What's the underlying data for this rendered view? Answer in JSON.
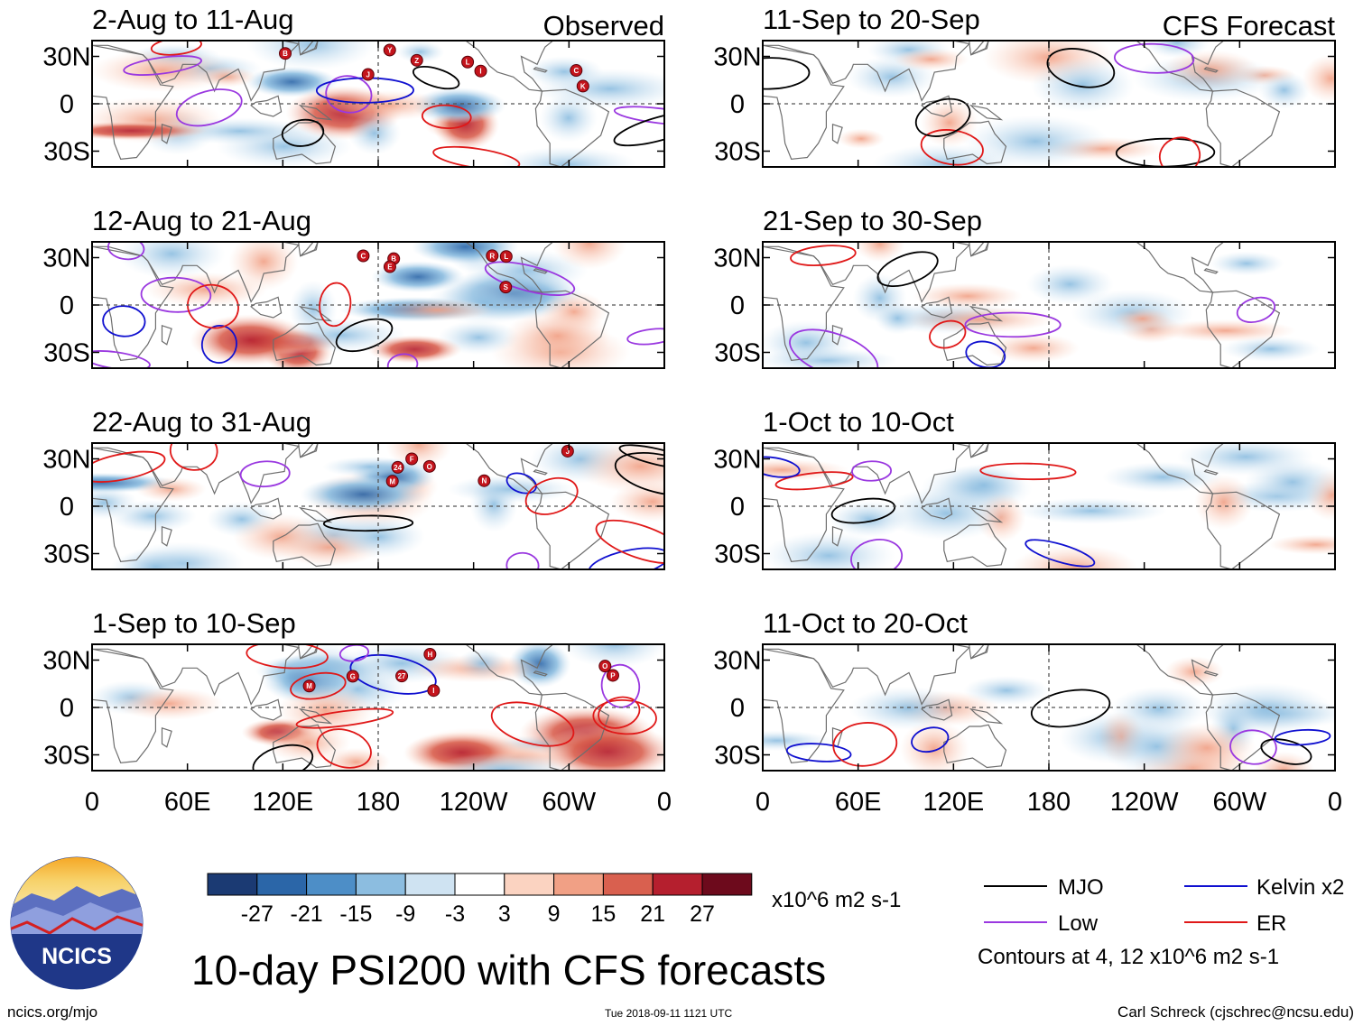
{
  "chart_data": {
    "type": "heatmap",
    "title": "10-day PSI200 with CFS forecasts",
    "variable": "PSI200 anomaly",
    "units": "x10^6 m2 s-1",
    "column_labels": [
      "Observed",
      "CFS Forecast"
    ],
    "panels": [
      {
        "label": "2-Aug to 11-Aug",
        "source": "Observed",
        "storms": [
          "Y",
          "Z",
          "B",
          "C",
          "K",
          "J",
          "I",
          "L"
        ]
      },
      {
        "label": "12-Aug to 21-Aug",
        "source": "Observed",
        "storms": [
          "B",
          "R",
          "S",
          "C",
          "L",
          "E"
        ]
      },
      {
        "label": "22-Aug to 31-Aug",
        "source": "Observed",
        "storms": [
          "24",
          "J",
          "M",
          "N",
          "O",
          "F"
        ]
      },
      {
        "label": "1-Sep to 10-Sep",
        "source": "Observed",
        "storms": [
          "27",
          "M",
          "P",
          "O",
          "G",
          "I",
          "H"
        ]
      },
      {
        "label": "11-Sep to 20-Sep",
        "source": "CFS Forecast",
        "storms": []
      },
      {
        "label": "21-Sep to 30-Sep",
        "source": "CFS Forecast",
        "storms": []
      },
      {
        "label": "1-Oct to 10-Oct",
        "source": "CFS Forecast",
        "storms": []
      },
      {
        "label": "11-Oct to 20-Oct",
        "source": "CFS Forecast",
        "storms": []
      }
    ],
    "x_ticks": [
      "0",
      "60E",
      "120E",
      "180",
      "120W",
      "60W",
      "0"
    ],
    "y_ticks": [
      "30N",
      "0",
      "30S"
    ],
    "lat_range": [
      -40,
      40
    ],
    "lon_range": [
      0,
      360
    ],
    "colorbar": {
      "ticks": [
        "-27",
        "-21",
        "-15",
        "-9",
        "-3",
        "3",
        "9",
        "15",
        "21",
        "27"
      ],
      "levels": [
        -27,
        -21,
        -15,
        -9,
        -3,
        3,
        9,
        15,
        21,
        27
      ],
      "colors": [
        "#1b3a73",
        "#2b66a8",
        "#4d8ec7",
        "#8cbde0",
        "#cfe3f2",
        "#ffffff",
        "#fbd3c1",
        "#f1a085",
        "#d9604f",
        "#b51f2e",
        "#6d0a1c"
      ]
    },
    "contour_legend": [
      {
        "label": "MJO",
        "color": "#000000"
      },
      {
        "label": "Kelvin x2",
        "color": "#1010d0"
      },
      {
        "label": "Low",
        "color": "#9a38e0"
      },
      {
        "label": "ER",
        "color": "#e01818"
      }
    ],
    "contour_note": "Contours at 4, 12 x10^6 m2 s-1"
  },
  "branding": {
    "logo_text": "NCICS",
    "site": "ncics.org/mjo",
    "timestamp": "Tue 2018-09-11 1121 UTC",
    "author": "Carl Schreck (cjschrec@ncsu.edu)"
  }
}
